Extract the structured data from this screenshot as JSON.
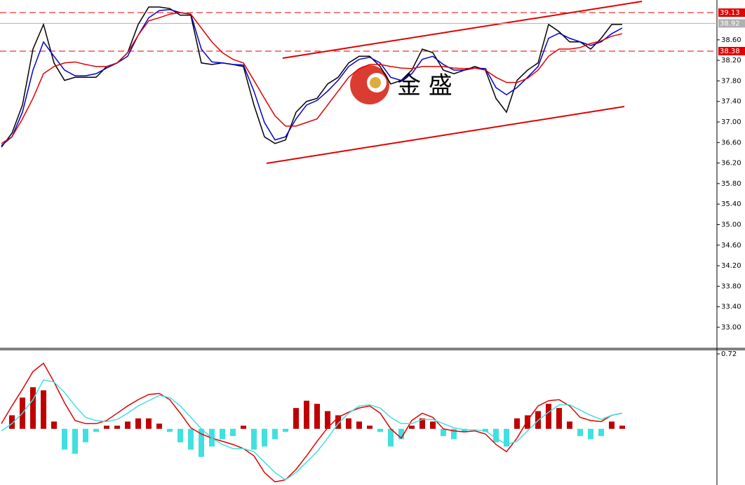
{
  "chart_data": [
    {
      "type": "line",
      "ylim": [
        32.59,
        39.376
      ],
      "yticks": [
        {
          "value": 33,
          "label": "33.00"
        },
        {
          "value": 33.4,
          "label": "33.40"
        },
        {
          "value": 33.8,
          "label": "33.80"
        },
        {
          "value": 34.2,
          "label": "34.20"
        },
        {
          "value": 34.6,
          "label": "34.60"
        },
        {
          "value": 35,
          "label": "35.00"
        },
        {
          "value": 35.4,
          "label": "35.40"
        },
        {
          "value": 35.8,
          "label": "35.80"
        },
        {
          "value": 36.2,
          "label": "36.20"
        },
        {
          "value": 36.6,
          "label": "36.60"
        },
        {
          "value": 37,
          "label": "37.00"
        },
        {
          "value": 37.4,
          "label": "37.40"
        },
        {
          "value": 37.8,
          "label": "37.80"
        },
        {
          "value": 38.2,
          "label": "38.20"
        },
        {
          "value": 38.6,
          "label": "38.60"
        }
      ],
      "levels": [
        {
          "value": 39.13,
          "color": "#e00000",
          "style": "dashed"
        },
        {
          "value": 38.92,
          "color": "#b0b0b0",
          "style": "solid"
        },
        {
          "value": 38.38,
          "color": "#e00000",
          "style": "dashed"
        }
      ],
      "watermark": "金 盛",
      "series": [
        {
          "color": "#000000",
          "values": [
            36.51,
            36.78,
            37.33,
            38.42,
            38.9,
            38.15,
            37.81,
            37.87,
            37.87,
            37.87,
            38.08,
            38.15,
            38.35,
            38.9,
            39.24,
            39.24,
            39.21,
            39.08,
            39.08,
            38.15,
            38.12,
            38.15,
            38.12,
            38.08,
            37.33,
            36.71,
            36.58,
            36.65,
            37.19,
            37.4,
            37.46,
            37.74,
            37.87,
            38.15,
            38.28,
            38.28,
            38.08,
            37.74,
            37.81,
            38.01,
            38.42,
            38.35,
            38.01,
            37.94,
            38.01,
            38.08,
            38.01,
            37.46,
            37.19,
            37.81,
            38.01,
            38.15,
            38.9,
            38.76,
            38.56,
            38.56,
            38.42,
            38.63,
            38.9,
            38.9
          ]
        },
        {
          "color": "#0000cc",
          "values": [
            36.54,
            36.71,
            37.19,
            38.01,
            38.56,
            38.28,
            38.01,
            37.9,
            37.9,
            37.94,
            38.05,
            38.15,
            38.28,
            38.69,
            39.03,
            39.17,
            39.19,
            39.13,
            39.1,
            38.42,
            38.17,
            38.15,
            38.12,
            38.11,
            37.6,
            36.99,
            36.65,
            36.71,
            37.06,
            37.33,
            37.42,
            37.6,
            37.81,
            38.08,
            38.22,
            38.26,
            38.15,
            37.87,
            37.81,
            37.94,
            38.22,
            38.28,
            38.12,
            38.01,
            38.01,
            38.05,
            38.04,
            37.67,
            37.53,
            37.67,
            37.87,
            38.08,
            38.63,
            38.73,
            38.63,
            38.56,
            38.49,
            38.56,
            38.72,
            38.83
          ]
        },
        {
          "color": "#e00000",
          "values": [
            36.58,
            36.71,
            37.06,
            37.46,
            37.94,
            38.08,
            38.15,
            38.17,
            38.12,
            38.08,
            38.08,
            38.15,
            38.35,
            38.69,
            38.97,
            39.03,
            39.1,
            39.13,
            39.1,
            38.83,
            38.56,
            38.35,
            38.22,
            38.15,
            37.81,
            37.46,
            37.12,
            36.92,
            36.92,
            36.99,
            37.06,
            37.33,
            37.6,
            37.87,
            38.04,
            38.12,
            38.12,
            38.08,
            38.05,
            38.04,
            38.08,
            38.08,
            38.08,
            38.05,
            38.04,
            38.05,
            38.01,
            37.87,
            37.77,
            37.77,
            37.85,
            38.01,
            38.28,
            38.42,
            38.42,
            38.45,
            38.53,
            38.58,
            38.67,
            38.72
          ]
        }
      ]
    },
    {
      "type": "macd",
      "ylim": [
        -0.54,
        0.76
      ],
      "yticks": [
        0.72
      ],
      "histogram": {
        "pos_color": "#c00000",
        "neg_color": "#40e0e0",
        "values": [
          0,
          0.13,
          0.3,
          0.4,
          0.37,
          0.07,
          -0.2,
          -0.24,
          -0.13,
          -0.03,
          0.03,
          0.03,
          0.07,
          0.1,
          0.1,
          0.05,
          -0.03,
          -0.13,
          -0.2,
          -0.27,
          -0.17,
          -0.1,
          -0.07,
          0.03,
          -0.2,
          -0.17,
          -0.1,
          -0.03,
          0.2,
          0.27,
          0.24,
          0.17,
          0.13,
          0.1,
          0.07,
          0.03,
          -0.03,
          -0.17,
          -0.1,
          0.03,
          0.1,
          0.07,
          -0.07,
          -0.1,
          -0.03,
          0,
          -0.03,
          -0.13,
          -0.17,
          0.1,
          0.13,
          0.17,
          0.24,
          0.2,
          0.07,
          -0.07,
          -0.1,
          -0.07,
          0.07,
          0.03
        ]
      },
      "series": [
        {
          "color": "#e00000",
          "values": [
            0.05,
            0.22,
            0.38,
            0.55,
            0.63,
            0.45,
            0.25,
            0.08,
            0.05,
            0.05,
            0.08,
            0.15,
            0.22,
            0.28,
            0.33,
            0.34,
            0.28,
            0.15,
            0.01,
            -0.05,
            -0.09,
            -0.12,
            -0.15,
            -0.19,
            -0.26,
            -0.42,
            -0.51,
            -0.49,
            -0.39,
            -0.26,
            -0.12,
            0.01,
            0.11,
            0.16,
            0.2,
            0.22,
            0.15,
            0,
            -0.09,
            0.08,
            0.15,
            0.11,
            0,
            -0.02,
            -0.03,
            -0.02,
            -0.05,
            -0.15,
            -0.22,
            -0.09,
            0.08,
            0.22,
            0.27,
            0.28,
            0.22,
            0.11,
            0.08,
            0.07,
            0.13,
            0.15
          ]
        },
        {
          "color": "#40e0e0",
          "values": [
            -0.02,
            0.05,
            0.15,
            0.28,
            0.47,
            0.45,
            0.35,
            0.22,
            0.11,
            0.08,
            0.07,
            0.09,
            0.15,
            0.22,
            0.27,
            0.32,
            0.3,
            0.22,
            0.11,
            0,
            -0.09,
            -0.15,
            -0.19,
            -0.19,
            -0.22,
            -0.32,
            -0.42,
            -0.49,
            -0.42,
            -0.32,
            -0.22,
            -0.09,
            0.05,
            0.15,
            0.22,
            0.23,
            0.2,
            0.11,
            0.05,
            0.05,
            0.09,
            0.09,
            0.05,
            0.01,
            -0.01,
            -0.01,
            -0.02,
            -0.09,
            -0.15,
            -0.12,
            -0.02,
            0.08,
            0.16,
            0.23,
            0.23,
            0.18,
            0.13,
            0.09,
            0.13,
            0.15
          ]
        }
      ]
    }
  ]
}
